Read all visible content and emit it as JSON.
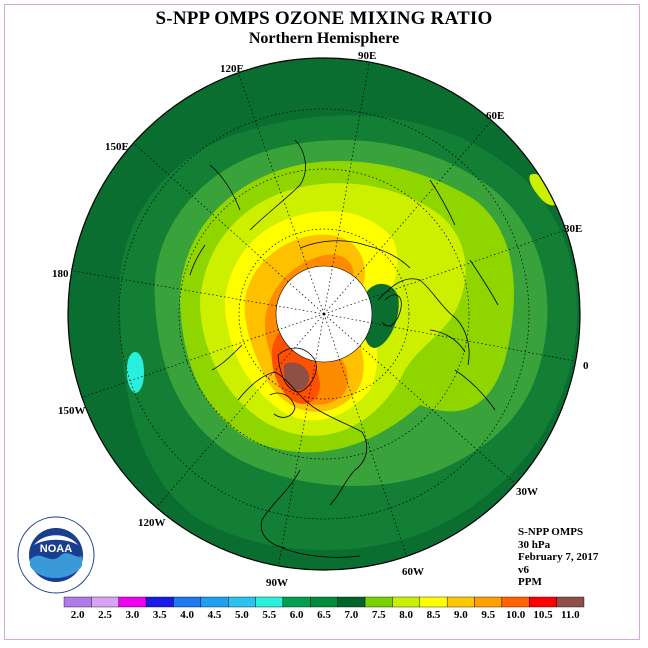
{
  "header": {
    "title": "S-NPP OMPS OZONE MIXING RATIO",
    "subtitle": "Northern Hemisphere"
  },
  "longitudes": [
    "90E",
    "60E",
    "30E",
    "0",
    "30W",
    "60W",
    "90W",
    "120W",
    "150W",
    "180",
    "150E",
    "120E"
  ],
  "info": {
    "instrument": "S-NPP OMPS",
    "level": "30 hPa",
    "date": "February 7, 2017",
    "version": "v6",
    "units": "PPM"
  },
  "logo": {
    "text": "NOAA",
    "ring_text": "NATIONAL OCEANIC AND ATMOSPHERIC ADMINISTRATION · U.S. DEPARTMENT OF COMMERCE"
  },
  "colorbar": {
    "ticks": [
      "2.0",
      "2.5",
      "3.0",
      "3.5",
      "4.0",
      "4.5",
      "5.0",
      "5.5",
      "6.0",
      "6.5",
      "7.0",
      "7.5",
      "8.0",
      "8.5",
      "9.0",
      "9.5",
      "10.0",
      "10.5",
      "11.0"
    ],
    "colors": [
      "#b07ae8",
      "#d9a2f2",
      "#f000f0",
      "#1a1ae6",
      "#1e78f0",
      "#1ea0f0",
      "#28c3f0",
      "#28f0dc",
      "#00a050",
      "#008c3c",
      "#006428",
      "#78d200",
      "#c8f000",
      "#ffff00",
      "#ffc800",
      "#ffa000",
      "#ff6400",
      "#ff0000",
      "#8c5046"
    ]
  },
  "map_colors": {
    "outer": "#0a6e30",
    "dark": "#127f35",
    "mid": "#3aa23a",
    "light_green": "#8fd600",
    "yellow_green": "#cdf000",
    "yellow": "#ffff00",
    "gold": "#ffc000",
    "orange": "#ff8c00",
    "red_orange": "#ff5000",
    "brown": "#8c5046",
    "cyan": "#28f0dc",
    "pole": "#ffffff"
  }
}
